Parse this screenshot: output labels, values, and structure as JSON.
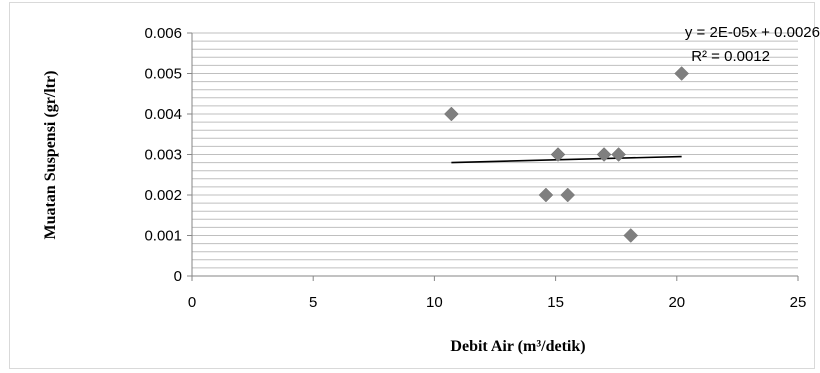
{
  "chart_data": {
    "type": "scatter",
    "title": "",
    "xlabel": "Debit Air (m³/detik)",
    "ylabel": "Muatan Suspensi (gr/ltr)",
    "xlim": [
      0,
      25
    ],
    "ylim": [
      0,
      0.006
    ],
    "x_ticks": [
      "0",
      "5",
      "10",
      "15",
      "20",
      "25"
    ],
    "y_ticks": [
      "0",
      "0.001",
      "0.002",
      "0.003",
      "0.004",
      "0.005",
      "0.006"
    ],
    "grid": true,
    "legend": "none",
    "points": [
      {
        "x": 10.7,
        "y": 0.004
      },
      {
        "x": 14.6,
        "y": 0.002
      },
      {
        "x": 15.1,
        "y": 0.003
      },
      {
        "x": 15.5,
        "y": 0.002
      },
      {
        "x": 17.0,
        "y": 0.003
      },
      {
        "x": 17.6,
        "y": 0.003
      },
      {
        "x": 18.1,
        "y": 0.001
      },
      {
        "x": 20.2,
        "y": 0.005
      }
    ],
    "trendline": {
      "x_range": [
        10.7,
        20.2
      ],
      "y_range": [
        0.0028,
        0.00295
      ],
      "equation": "y = 2E-05x + 0.0026",
      "r_squared": "R² = 0.0012"
    },
    "colors": {
      "marker": "#7f7f7f",
      "trendline": "#000000",
      "grid": "#bfbfbf",
      "axis": "#868686"
    }
  }
}
